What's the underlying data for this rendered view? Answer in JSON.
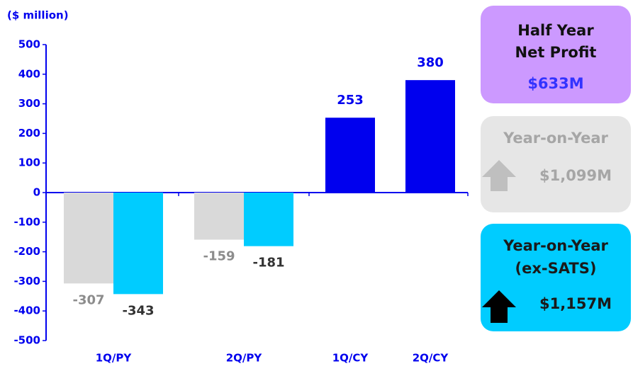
{
  "chart_data": {
    "type": "bar",
    "y_label": "($ million)",
    "categories": [
      "1Q/PY",
      "2Q/PY",
      "1Q/CY",
      "2Q/CY"
    ],
    "series": [
      {
        "color": "#d9d9d9",
        "label_color": "#8c8c8c",
        "values": [
          -307,
          -159,
          null,
          null
        ]
      },
      {
        "color": "#00ccff",
        "label_color": "#333333",
        "values": [
          -343,
          -181,
          null,
          null
        ]
      },
      {
        "color": "#0000ee",
        "label_color": "#0000ee",
        "values": [
          null,
          null,
          253,
          380
        ]
      }
    ],
    "ylim": [
      -500,
      500
    ],
    "yticks": [
      -500,
      -400,
      -300,
      -200,
      -100,
      0,
      100,
      200,
      300,
      400,
      500
    ],
    "grid": false
  },
  "panels": [
    {
      "title_lines": [
        "Half Year",
        "Net Profit"
      ],
      "value": "$633M"
    },
    {
      "title_lines": [
        "Year-on-Year"
      ],
      "value": "$1,099M"
    },
    {
      "title_lines": [
        "Year-on-Year",
        "(ex-SATS)"
      ],
      "value": "$1,157M"
    }
  ]
}
